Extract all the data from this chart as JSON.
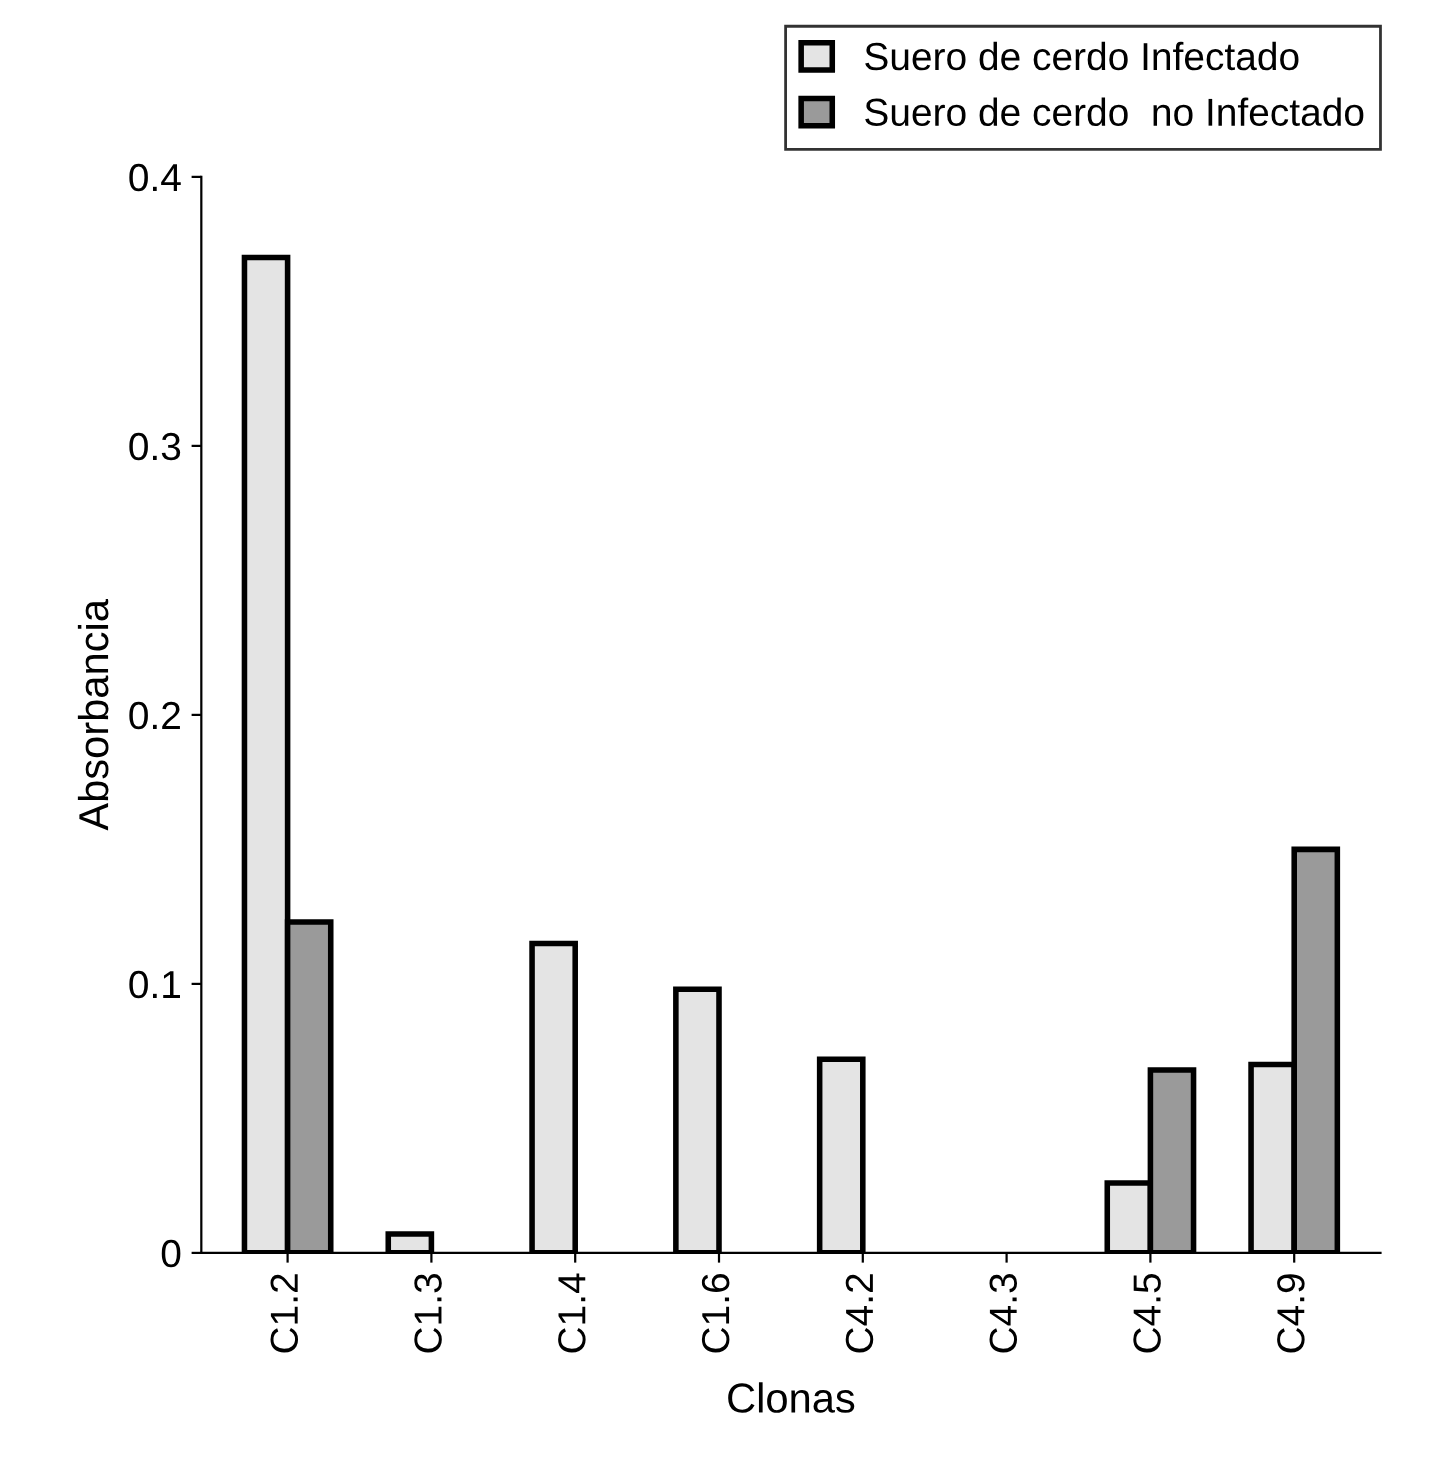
{
  "chart_data": {
    "type": "bar",
    "xlabel": "Clonas",
    "ylabel": "Absorbancia",
    "categories": [
      "C1.2",
      "C1.3",
      "C1.4",
      "C1.6",
      "C4.2",
      "C4.3",
      "C4.5",
      "C4.9"
    ],
    "series": [
      {
        "name": "Suero de cerdo Infectado",
        "color": "#e4e4e4",
        "values": [
          0.37,
          0.007,
          0.115,
          0.098,
          0.072,
          null,
          0.026,
          0.07
        ]
      },
      {
        "name": "Suero de cerdo  no Infectado",
        "color": "#9a9a9a",
        "values": [
          0.123,
          null,
          null,
          null,
          null,
          null,
          0.068,
          0.15
        ]
      }
    ],
    "ylim": [
      0,
      0.4
    ],
    "yticks": [
      0,
      0.1,
      0.2,
      0.3,
      0.4
    ],
    "grid": false,
    "legend": "top right"
  }
}
